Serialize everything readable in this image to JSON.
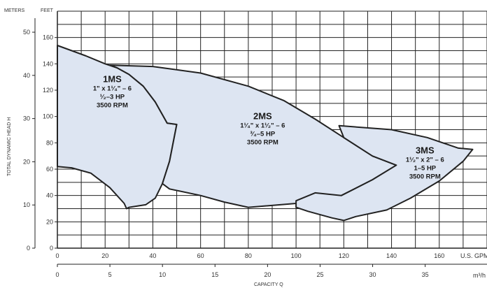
{
  "chart_data": {
    "type": "area",
    "axes": {
      "left_outer": {
        "unit_label": "METERS",
        "title": "TOTAL DYNAMIC HEAD  H",
        "ticks": [
          0,
          10,
          20,
          30,
          40,
          50
        ]
      },
      "left_inner": {
        "unit_label": "FEET",
        "ticks": [
          0,
          20,
          40,
          60,
          80,
          100,
          120,
          140,
          160
        ],
        "ylim": [
          0,
          180
        ]
      },
      "bottom_top_row": {
        "unit_label": "U.S. GPM",
        "ticks": [
          0,
          20,
          40,
          60,
          80,
          100,
          120,
          140,
          160
        ],
        "xlim": [
          0,
          180
        ]
      },
      "bottom_row": {
        "unit_label": "m³/h",
        "title": "CAPACITY Q",
        "ticks": [
          0,
          5,
          10,
          15,
          20,
          25,
          30,
          35
        ]
      }
    },
    "grid": true,
    "series": [
      {
        "name": "1MS",
        "lines": [
          "1\" x 1¹⁄₄\" – 6",
          "¹⁄₂–3 HP",
          "3500 RPM"
        ],
        "boundary_gpm_ft": [
          [
            0,
            154
          ],
          [
            6,
            150
          ],
          [
            12,
            146
          ],
          [
            20,
            140
          ],
          [
            25,
            137
          ],
          [
            30,
            132
          ],
          [
            36,
            123
          ],
          [
            41,
            111
          ],
          [
            46,
            95
          ],
          [
            50,
            94
          ],
          [
            47,
            66
          ],
          [
            44,
            49
          ],
          [
            41,
            38
          ],
          [
            37,
            33
          ],
          [
            30,
            31
          ],
          [
            29,
            30
          ],
          [
            28,
            34
          ],
          [
            22,
            46
          ],
          [
            14,
            57
          ],
          [
            6,
            61
          ],
          [
            0,
            62
          ]
        ],
        "fill": "#dde5f2"
      },
      {
        "name": "2MS",
        "lines": [
          "1¹⁄₄\" x 1¹⁄₂\" – 6",
          "³⁄₄–5 HP",
          "3500 RPM"
        ],
        "boundary_gpm_ft": [
          [
            22,
            139
          ],
          [
            40,
            138
          ],
          [
            60,
            133
          ],
          [
            80,
            123
          ],
          [
            95,
            112
          ],
          [
            108,
            98
          ],
          [
            120,
            84
          ],
          [
            132,
            70
          ],
          [
            142,
            63
          ],
          [
            132,
            52
          ],
          [
            119,
            40
          ],
          [
            100,
            34
          ],
          [
            80,
            31
          ],
          [
            70,
            35
          ],
          [
            60,
            40
          ],
          [
            47,
            45
          ],
          [
            44,
            49
          ],
          [
            47,
            66
          ],
          [
            50,
            94
          ],
          [
            46,
            95
          ],
          [
            41,
            111
          ],
          [
            36,
            123
          ],
          [
            30,
            132
          ],
          [
            25,
            137
          ]
        ],
        "fill": "#dde5f2"
      },
      {
        "name": "3MS",
        "lines": [
          "1¹⁄₂\" x 2\" – 6",
          "1–5 HP",
          "3500 RPM"
        ],
        "boundary_gpm_ft": [
          [
            118,
            93
          ],
          [
            140,
            90
          ],
          [
            155,
            84
          ],
          [
            168,
            76
          ],
          [
            174,
            75
          ],
          [
            170,
            66
          ],
          [
            160,
            51
          ],
          [
            148,
            38
          ],
          [
            138,
            29
          ],
          [
            125,
            24
          ],
          [
            120,
            21
          ],
          [
            115,
            23
          ],
          [
            105,
            28
          ],
          [
            100,
            31
          ],
          [
            100,
            36
          ],
          [
            108,
            42
          ],
          [
            119,
            40
          ],
          [
            132,
            52
          ],
          [
            142,
            63
          ],
          [
            132,
            70
          ],
          [
            120,
            84
          ]
        ],
        "fill": "#dde5f2"
      }
    ],
    "style": {
      "outline": "#222222",
      "grid": "#222222",
      "background": "#ffffff"
    }
  }
}
